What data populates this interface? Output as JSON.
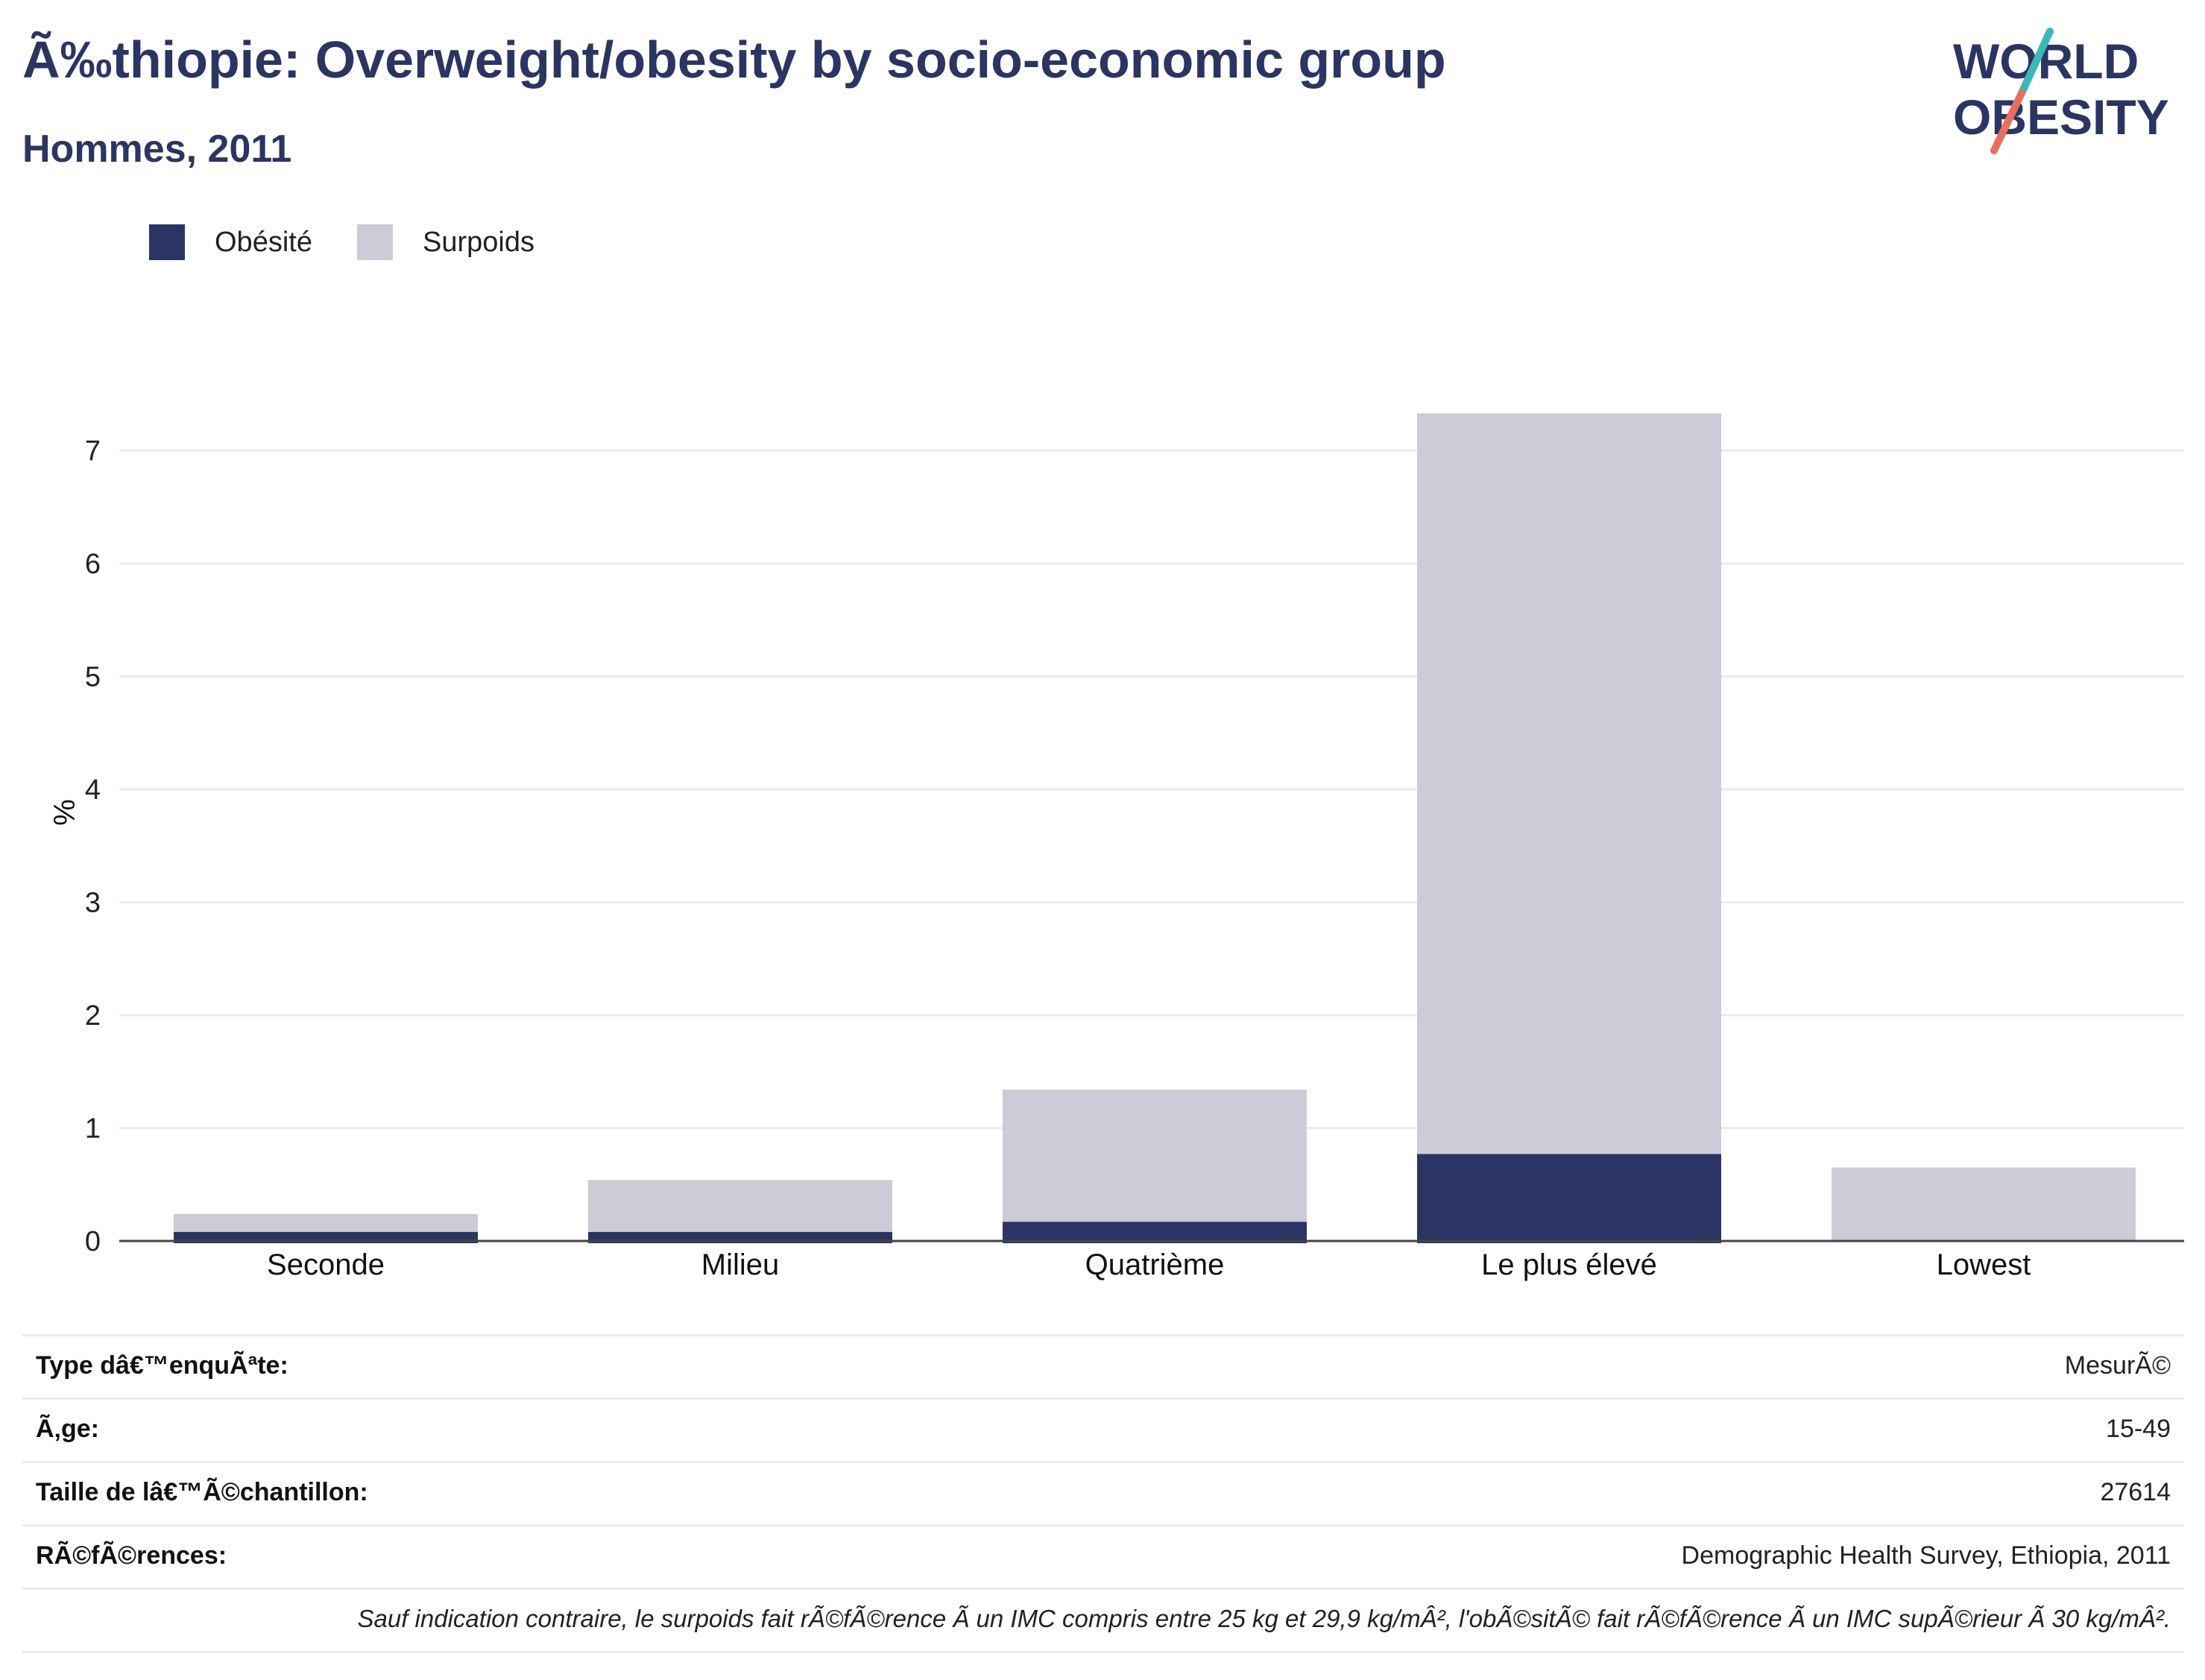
{
  "header": {
    "title": "Ã‰thiopie: Overweight/obesity by socio-economic group",
    "subtitle": "Hommes, 2011"
  },
  "logo": {
    "line1": "WORLD",
    "line2": "OBESITY"
  },
  "colors": {
    "obesity": "#2a3563",
    "overweight": "#cbccd7",
    "logo_teal": "#3bb8b8",
    "logo_coral": "#e86f5b"
  },
  "legend": {
    "items": [
      {
        "label": "Obésité",
        "color": "#2a3563"
      },
      {
        "label": "Surpoids",
        "color": "#cbccd7"
      }
    ]
  },
  "chart_data": {
    "type": "bar",
    "stacked": true,
    "ylabel": "%",
    "xlabel": "",
    "ylim": [
      0,
      7.5
    ],
    "yticks": [
      0,
      1,
      2,
      3,
      4,
      5,
      6,
      7
    ],
    "grid": true,
    "legend_position": "top-left",
    "categories": [
      "Seconde",
      "Milieu",
      "Quatrième",
      "Le plus élevé",
      "Lowest"
    ],
    "series": [
      {
        "name": "Obésité",
        "values": [
          0.08,
          0.08,
          0.17,
          0.77,
          0
        ]
      },
      {
        "name": "Surpoids",
        "values": [
          0.16,
          0.46,
          1.17,
          6.56,
          0.65
        ]
      }
    ]
  },
  "footer": {
    "rows": [
      {
        "key": "Type dâ€™enquÃªte:",
        "value": "MesurÃ©"
      },
      {
        "key": "Ã‚ge:",
        "value": "15-49"
      },
      {
        "key": "Taille de lâ€™Ã©chantillon:",
        "value": "27614"
      },
      {
        "key": "RÃ©fÃ©rences:",
        "value": "Demographic Health Survey, Ethiopia, 2011"
      }
    ],
    "note": "Sauf indication contraire, le surpoids fait rÃ©fÃ©rence Ã  un IMC compris entre 25 kg et 29,9 kg/mÂ², l'obÃ©sitÃ© fait rÃ©fÃ©rence Ã  un IMC supÃ©rieur Ã  30 kg/mÂ²."
  }
}
